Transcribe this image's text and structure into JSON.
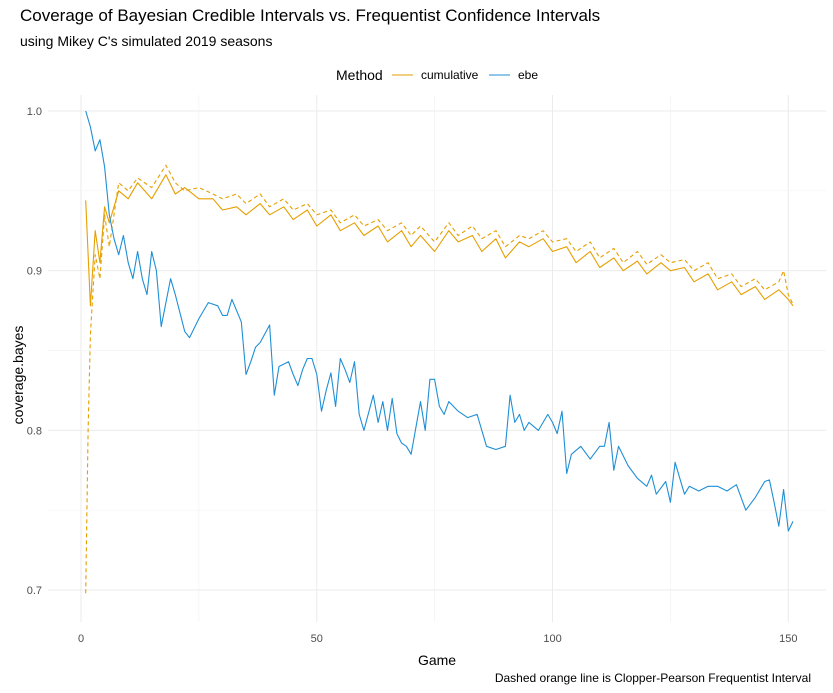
{
  "chart_data": {
    "type": "line",
    "title": "Coverage of Bayesian Credible Intervals vs. Frequentist Confidence Intervals",
    "subtitle": "using Mikey C's simulated 2019 seasons",
    "caption": "Dashed orange line is Clopper-Pearson Frequentist Interval",
    "xlabel": "Game",
    "ylabel": "coverage.bayes",
    "xlim": [
      -7,
      158
    ],
    "ylim": [
      0.68,
      1.01
    ],
    "x_ticks": [
      0,
      50,
      100,
      150
    ],
    "y_ticks": [
      0.7,
      0.8,
      0.9,
      1.0
    ],
    "x_tick_labels": [
      "0",
      "50",
      "100",
      "150"
    ],
    "y_tick_labels": [
      "0.7",
      "0.8",
      "0.9",
      "1.0"
    ],
    "grid": true,
    "legend": {
      "title": "Method",
      "position": "top"
    },
    "series": [
      {
        "name": "cumulative",
        "color": "#E69F00",
        "style": "solid",
        "points": [
          [
            1,
            0.944
          ],
          [
            2,
            0.878
          ],
          [
            3,
            0.925
          ],
          [
            4,
            0.905
          ],
          [
            5,
            0.94
          ],
          [
            6,
            0.93
          ],
          [
            8,
            0.95
          ],
          [
            10,
            0.945
          ],
          [
            12,
            0.955
          ],
          [
            15,
            0.945
          ],
          [
            18,
            0.96
          ],
          [
            20,
            0.948
          ],
          [
            22,
            0.952
          ],
          [
            25,
            0.945
          ],
          [
            28,
            0.945
          ],
          [
            30,
            0.938
          ],
          [
            33,
            0.94
          ],
          [
            35,
            0.935
          ],
          [
            38,
            0.942
          ],
          [
            40,
            0.935
          ],
          [
            43,
            0.94
          ],
          [
            45,
            0.932
          ],
          [
            48,
            0.938
          ],
          [
            50,
            0.928
          ],
          [
            53,
            0.935
          ],
          [
            55,
            0.925
          ],
          [
            58,
            0.93
          ],
          [
            60,
            0.922
          ],
          [
            63,
            0.928
          ],
          [
            65,
            0.918
          ],
          [
            68,
            0.925
          ],
          [
            70,
            0.915
          ],
          [
            72,
            0.922
          ],
          [
            75,
            0.912
          ],
          [
            78,
            0.925
          ],
          [
            80,
            0.918
          ],
          [
            83,
            0.922
          ],
          [
            85,
            0.912
          ],
          [
            88,
            0.92
          ],
          [
            90,
            0.908
          ],
          [
            93,
            0.918
          ],
          [
            95,
            0.915
          ],
          [
            98,
            0.92
          ],
          [
            100,
            0.912
          ],
          [
            103,
            0.915
          ],
          [
            105,
            0.905
          ],
          [
            108,
            0.912
          ],
          [
            110,
            0.902
          ],
          [
            113,
            0.908
          ],
          [
            115,
            0.9
          ],
          [
            118,
            0.906
          ],
          [
            120,
            0.898
          ],
          [
            123,
            0.905
          ],
          [
            125,
            0.9
          ],
          [
            128,
            0.902
          ],
          [
            130,
            0.893
          ],
          [
            133,
            0.898
          ],
          [
            135,
            0.888
          ],
          [
            138,
            0.893
          ],
          [
            140,
            0.885
          ],
          [
            143,
            0.89
          ],
          [
            145,
            0.882
          ],
          [
            148,
            0.888
          ],
          [
            150,
            0.882
          ],
          [
            151,
            0.878
          ]
        ]
      },
      {
        "name": "",
        "color": "#E69F00",
        "style": "dashed",
        "points": [
          [
            1,
            0.698
          ],
          [
            1.5,
            0.8
          ],
          [
            2,
            0.86
          ],
          [
            3,
            0.91
          ],
          [
            4,
            0.895
          ],
          [
            5,
            0.935
          ],
          [
            6,
            0.915
          ],
          [
            8,
            0.955
          ],
          [
            10,
            0.95
          ],
          [
            12,
            0.958
          ],
          [
            15,
            0.952
          ],
          [
            18,
            0.966
          ],
          [
            20,
            0.955
          ],
          [
            22,
            0.95
          ],
          [
            25,
            0.952
          ],
          [
            28,
            0.948
          ],
          [
            30,
            0.945
          ],
          [
            33,
            0.948
          ],
          [
            35,
            0.942
          ],
          [
            38,
            0.948
          ],
          [
            40,
            0.94
          ],
          [
            43,
            0.945
          ],
          [
            45,
            0.938
          ],
          [
            48,
            0.942
          ],
          [
            50,
            0.935
          ],
          [
            53,
            0.938
          ],
          [
            55,
            0.93
          ],
          [
            58,
            0.935
          ],
          [
            60,
            0.928
          ],
          [
            63,
            0.932
          ],
          [
            65,
            0.925
          ],
          [
            68,
            0.93
          ],
          [
            70,
            0.922
          ],
          [
            72,
            0.928
          ],
          [
            75,
            0.918
          ],
          [
            78,
            0.93
          ],
          [
            80,
            0.922
          ],
          [
            83,
            0.928
          ],
          [
            85,
            0.92
          ],
          [
            88,
            0.925
          ],
          [
            90,
            0.915
          ],
          [
            93,
            0.922
          ],
          [
            95,
            0.92
          ],
          [
            98,
            0.925
          ],
          [
            100,
            0.918
          ],
          [
            103,
            0.92
          ],
          [
            105,
            0.912
          ],
          [
            108,
            0.918
          ],
          [
            110,
            0.908
          ],
          [
            113,
            0.914
          ],
          [
            115,
            0.905
          ],
          [
            118,
            0.912
          ],
          [
            120,
            0.904
          ],
          [
            123,
            0.91
          ],
          [
            125,
            0.905
          ],
          [
            128,
            0.907
          ],
          [
            130,
            0.9
          ],
          [
            133,
            0.905
          ],
          [
            135,
            0.895
          ],
          [
            138,
            0.898
          ],
          [
            140,
            0.89
          ],
          [
            143,
            0.895
          ],
          [
            145,
            0.888
          ],
          [
            148,
            0.893
          ],
          [
            149,
            0.9
          ],
          [
            150,
            0.885
          ],
          [
            151,
            0.879
          ]
        ]
      },
      {
        "name": "ebe",
        "color": "#1F8FD6",
        "style": "solid",
        "points": [
          [
            1,
            1.0
          ],
          [
            2,
            0.99
          ],
          [
            3,
            0.975
          ],
          [
            4,
            0.982
          ],
          [
            5,
            0.965
          ],
          [
            6,
            0.935
          ],
          [
            7,
            0.92
          ],
          [
            8,
            0.91
          ],
          [
            9,
            0.922
          ],
          [
            10,
            0.905
          ],
          [
            11,
            0.895
          ],
          [
            12,
            0.912
          ],
          [
            13,
            0.895
          ],
          [
            14,
            0.885
          ],
          [
            15,
            0.912
          ],
          [
            16,
            0.9
          ],
          [
            17,
            0.865
          ],
          [
            18,
            0.88
          ],
          [
            19,
            0.895
          ],
          [
            20,
            0.885
          ],
          [
            22,
            0.862
          ],
          [
            23,
            0.858
          ],
          [
            25,
            0.87
          ],
          [
            27,
            0.88
          ],
          [
            29,
            0.878
          ],
          [
            30,
            0.872
          ],
          [
            31,
            0.872
          ],
          [
            32,
            0.882
          ],
          [
            34,
            0.868
          ],
          [
            35,
            0.835
          ],
          [
            36,
            0.843
          ],
          [
            37,
            0.852
          ],
          [
            38,
            0.855
          ],
          [
            40,
            0.866
          ],
          [
            41,
            0.822
          ],
          [
            42,
            0.84
          ],
          [
            44,
            0.843
          ],
          [
            45,
            0.835
          ],
          [
            46,
            0.828
          ],
          [
            47,
            0.838
          ],
          [
            48,
            0.845
          ],
          [
            49,
            0.845
          ],
          [
            50,
            0.835
          ],
          [
            51,
            0.812
          ],
          [
            52,
            0.825
          ],
          [
            53,
            0.836
          ],
          [
            54,
            0.815
          ],
          [
            55,
            0.845
          ],
          [
            56,
            0.838
          ],
          [
            57,
            0.83
          ],
          [
            58,
            0.843
          ],
          [
            59,
            0.81
          ],
          [
            60,
            0.8
          ],
          [
            62,
            0.822
          ],
          [
            63,
            0.805
          ],
          [
            64,
            0.818
          ],
          [
            65,
            0.8
          ],
          [
            66,
            0.82
          ],
          [
            67,
            0.798
          ],
          [
            68,
            0.792
          ],
          [
            69,
            0.79
          ],
          [
            70,
            0.785
          ],
          [
            72,
            0.818
          ],
          [
            73,
            0.8
          ],
          [
            74,
            0.832
          ],
          [
            75,
            0.832
          ],
          [
            76,
            0.815
          ],
          [
            77,
            0.81
          ],
          [
            78,
            0.818
          ],
          [
            80,
            0.812
          ],
          [
            82,
            0.808
          ],
          [
            84,
            0.81
          ],
          [
            86,
            0.79
          ],
          [
            88,
            0.788
          ],
          [
            90,
            0.79
          ],
          [
            91,
            0.822
          ],
          [
            92,
            0.805
          ],
          [
            93,
            0.81
          ],
          [
            94,
            0.8
          ],
          [
            95,
            0.805
          ],
          [
            97,
            0.8
          ],
          [
            99,
            0.81
          ],
          [
            100,
            0.805
          ],
          [
            101,
            0.798
          ],
          [
            102,
            0.812
          ],
          [
            103,
            0.773
          ],
          [
            104,
            0.785
          ],
          [
            106,
            0.79
          ],
          [
            108,
            0.782
          ],
          [
            110,
            0.79
          ],
          [
            111,
            0.79
          ],
          [
            112,
            0.805
          ],
          [
            113,
            0.775
          ],
          [
            114,
            0.79
          ],
          [
            116,
            0.778
          ],
          [
            118,
            0.77
          ],
          [
            120,
            0.765
          ],
          [
            121,
            0.772
          ],
          [
            122,
            0.76
          ],
          [
            124,
            0.768
          ],
          [
            125,
            0.755
          ],
          [
            126,
            0.78
          ],
          [
            127,
            0.77
          ],
          [
            128,
            0.76
          ],
          [
            129,
            0.765
          ],
          [
            131,
            0.762
          ],
          [
            133,
            0.765
          ],
          [
            135,
            0.765
          ],
          [
            137,
            0.762
          ],
          [
            139,
            0.766
          ],
          [
            141,
            0.75
          ],
          [
            143,
            0.758
          ],
          [
            145,
            0.768
          ],
          [
            146,
            0.769
          ],
          [
            147,
            0.755
          ],
          [
            148,
            0.74
          ],
          [
            149,
            0.763
          ],
          [
            150,
            0.737
          ],
          [
            151,
            0.743
          ]
        ]
      }
    ]
  }
}
